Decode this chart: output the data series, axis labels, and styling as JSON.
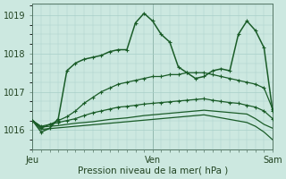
{
  "title": "Pression niveau de la mer( hPa )",
  "bg_color": "#cce8e0",
  "grid_color": "#a8cfc8",
  "line_color": "#1a5c28",
  "ylim": [
    1015.5,
    1019.3
  ],
  "yticks": [
    1016,
    1017,
    1018,
    1019
  ],
  "xtick_labels": [
    "Jeu",
    "Ven",
    "Sam"
  ],
  "xtick_positions": [
    0,
    14,
    28
  ],
  "n_points": 29,
  "series": [
    [
      1016.25,
      1015.95,
      1016.05,
      1016.3,
      1017.55,
      1017.75,
      1017.85,
      1017.9,
      1017.95,
      1018.05,
      1018.1,
      1018.1,
      1018.8,
      1019.05,
      1018.85,
      1018.5,
      1018.3,
      1017.65,
      1017.5,
      1017.35,
      1017.4,
      1017.55,
      1017.6,
      1017.55,
      1018.5,
      1018.85,
      1018.6,
      1018.15,
      1016.5
    ],
    [
      1016.25,
      1016.05,
      1016.15,
      1016.25,
      1016.35,
      1016.5,
      1016.7,
      1016.85,
      1017.0,
      1017.1,
      1017.2,
      1017.25,
      1017.3,
      1017.35,
      1017.4,
      1017.4,
      1017.45,
      1017.45,
      1017.5,
      1017.5,
      1017.5,
      1017.45,
      1017.4,
      1017.35,
      1017.3,
      1017.25,
      1017.2,
      1017.1,
      1016.55
    ],
    [
      1016.25,
      1016.1,
      1016.15,
      1016.2,
      1016.25,
      1016.3,
      1016.38,
      1016.45,
      1016.5,
      1016.55,
      1016.6,
      1016.62,
      1016.65,
      1016.68,
      1016.7,
      1016.72,
      1016.74,
      1016.76,
      1016.78,
      1016.8,
      1016.82,
      1016.78,
      1016.75,
      1016.72,
      1016.7,
      1016.65,
      1016.6,
      1016.5,
      1016.3
    ],
    [
      1016.25,
      1016.08,
      1016.1,
      1016.12,
      1016.15,
      1016.18,
      1016.2,
      1016.22,
      1016.25,
      1016.28,
      1016.3,
      1016.32,
      1016.35,
      1016.38,
      1016.4,
      1016.42,
      1016.44,
      1016.46,
      1016.48,
      1016.5,
      1016.52,
      1016.5,
      1016.48,
      1016.46,
      1016.44,
      1016.42,
      1016.3,
      1016.15,
      1016.05
    ],
    [
      1016.25,
      1016.02,
      1016.04,
      1016.06,
      1016.08,
      1016.1,
      1016.12,
      1016.14,
      1016.16,
      1016.18,
      1016.2,
      1016.22,
      1016.24,
      1016.26,
      1016.28,
      1016.3,
      1016.32,
      1016.34,
      1016.36,
      1016.38,
      1016.4,
      1016.36,
      1016.32,
      1016.28,
      1016.24,
      1016.2,
      1016.1,
      1015.95,
      1015.75
    ]
  ],
  "series_markers": [
    true,
    true,
    true,
    false,
    false
  ],
  "vline_x": [
    0,
    14,
    28
  ]
}
